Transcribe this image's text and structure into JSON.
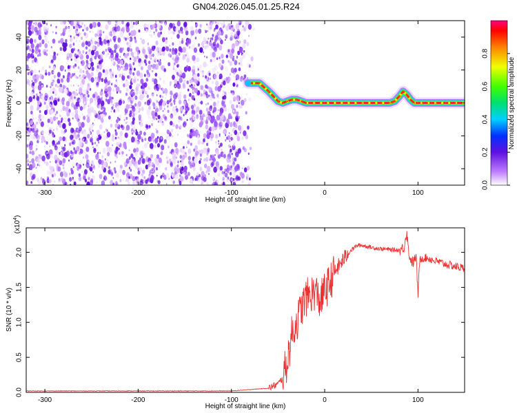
{
  "title": "GN04.2026.045.01.25.R24",
  "chart_data": [
    {
      "type": "heatmap",
      "xlabel": "Height of straight line (km)",
      "ylabel": "Frequency (Hz)",
      "xlim": [
        -320,
        150
      ],
      "ylim": [
        -50,
        50
      ],
      "xticks": [
        -300,
        -200,
        -100,
        0,
        100
      ],
      "yticks": [
        -40,
        -20,
        0,
        20,
        40
      ],
      "noise_region": {
        "x_range": [
          -320,
          -75
        ],
        "y_range": [
          -50,
          50
        ]
      },
      "ridge_line": {
        "x": [
          -82,
          -70,
          -60,
          -50,
          -45,
          -40,
          -35,
          -30,
          -25,
          -20,
          -15,
          -10,
          0,
          20,
          40,
          60,
          70,
          75,
          80,
          84,
          88,
          92,
          96,
          100,
          105,
          110,
          115,
          120,
          130,
          140,
          150
        ],
        "y": [
          12,
          12,
          7,
          1,
          0,
          1,
          2,
          2,
          1,
          0,
          0,
          0,
          0,
          0,
          0,
          0,
          0,
          1,
          4,
          7,
          5,
          2,
          0,
          0,
          0,
          0,
          0,
          0,
          0,
          0,
          0
        ]
      },
      "colorbar": {
        "label": "Normalized spectral amplitude",
        "range": [
          0,
          1
        ],
        "ticks": [
          0.0,
          0.2,
          0.4,
          0.6,
          0.8
        ]
      }
    },
    {
      "type": "line",
      "xlabel": "Height of straight line (km)",
      "ylabel": "SNR (10 * v/v)",
      "multiplier_label": "(x10",
      "multiplier_exp": "4",
      "xlim": [
        -320,
        150
      ],
      "ylim": [
        0,
        2.35
      ],
      "xticks": [
        -300,
        -200,
        -100,
        0,
        100
      ],
      "yticks": [
        0.0,
        0.5,
        1.0,
        1.5,
        2.0
      ],
      "series": [
        {
          "color": "#e83030",
          "x": [
            -320,
            -100,
            -60,
            -50,
            -45,
            -40,
            -35,
            -30,
            -25,
            -20,
            -15,
            -10,
            -5,
            0,
            5,
            10,
            15,
            20,
            25,
            30,
            35,
            40,
            50,
            60,
            70,
            80,
            85,
            88,
            90,
            92,
            95,
            98,
            100,
            102,
            105,
            110,
            120,
            130,
            140,
            150
          ],
          "y": [
            0.02,
            0.02,
            0.06,
            0.12,
            0.2,
            0.45,
            0.85,
            1.0,
            1.2,
            1.35,
            1.4,
            1.45,
            1.3,
            1.45,
            1.55,
            1.7,
            1.8,
            1.9,
            1.98,
            2.05,
            2.1,
            2.1,
            2.07,
            2.05,
            2.04,
            2.03,
            2.07,
            2.3,
            2.0,
            1.9,
            1.85,
            1.95,
            1.4,
            1.9,
            1.92,
            1.92,
            1.87,
            1.83,
            1.8,
            1.77
          ]
        }
      ]
    }
  ]
}
